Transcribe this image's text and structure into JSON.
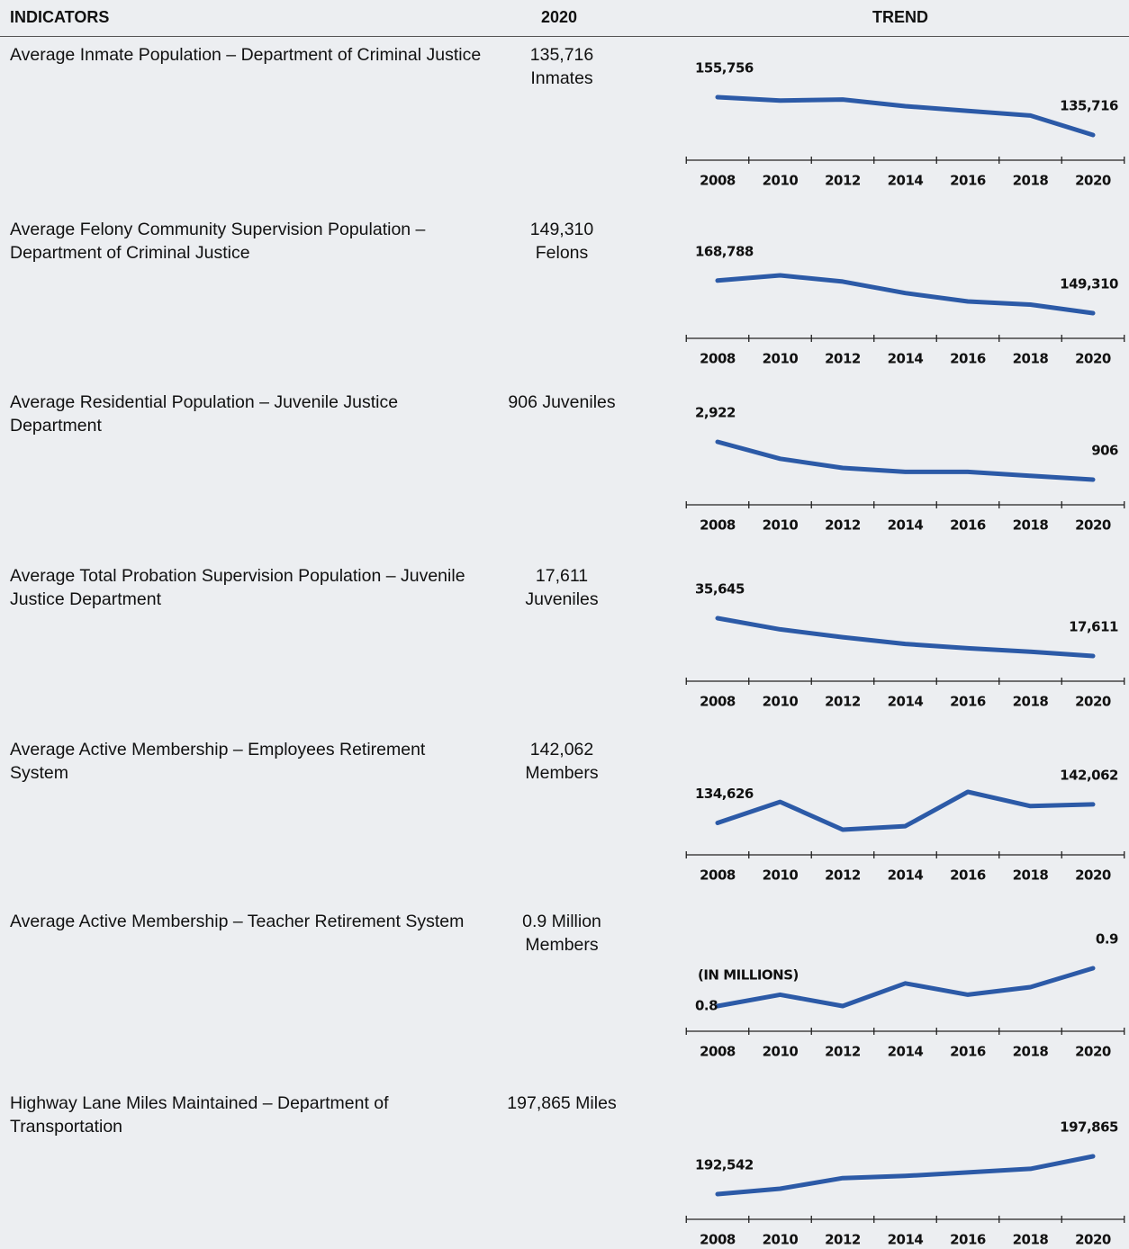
{
  "header": {
    "indicators": "INDICATORS",
    "year": "2020",
    "trend": "TREND"
  },
  "rows": [
    {
      "indicator": "Average Inmate Population – Department of Criminal Justice",
      "value_lines": [
        "135,716",
        "Inmates"
      ],
      "trend": {
        "type": "line",
        "x": [
          2008,
          2010,
          2012,
          2014,
          2016,
          2018,
          2020
        ],
        "values": [
          155756,
          154000,
          154500,
          151000,
          148500,
          146000,
          135716
        ],
        "value_labels": [
          "155,756",
          null,
          null,
          null,
          null,
          null,
          "135,716"
        ]
      }
    },
    {
      "indicator": "Average Felony Community Supervision Population – Department of Criminal Justice",
      "value_lines": [
        "149,310",
        "Felons"
      ],
      "trend": {
        "type": "line",
        "x": [
          2008,
          2010,
          2012,
          2014,
          2016,
          2018,
          2020
        ],
        "values": [
          168788,
          171900,
          168200,
          161300,
          156300,
          154400,
          149310
        ],
        "value_labels": [
          "168,788",
          null,
          null,
          null,
          null,
          null,
          "149,310"
        ]
      }
    },
    {
      "indicator": "Average Residential Population – Juvenile Justice Department",
      "value_lines": [
        "906 Juveniles"
      ],
      "trend": {
        "type": "line",
        "x": [
          2008,
          2010,
          2012,
          2014,
          2016,
          2018,
          2020
        ],
        "values": [
          2922,
          2020,
          1530,
          1320,
          1320,
          1110,
          906
        ],
        "value_labels": [
          "2,922",
          null,
          null,
          null,
          null,
          null,
          "906"
        ]
      }
    },
    {
      "indicator": "Average Total Probation Supervision Population – Juvenile Justice Department",
      "value_lines": [
        "17,611",
        "Juveniles"
      ],
      "trend": {
        "type": "line",
        "x": [
          2008,
          2010,
          2012,
          2014,
          2016,
          2018,
          2020
        ],
        "values": [
          35645,
          30300,
          26600,
          23350,
          21300,
          19650,
          17611
        ],
        "value_labels": [
          "35,645",
          null,
          null,
          null,
          null,
          null,
          "17,611"
        ]
      }
    },
    {
      "indicator": "Average Active Membership – Employees Retirement System",
      "value_lines": [
        "142,062",
        "Members"
      ],
      "trend": {
        "type": "line",
        "x": [
          2008,
          2010,
          2012,
          2014,
          2016,
          2018,
          2020
        ],
        "values": [
          134626,
          143100,
          131900,
          133300,
          147100,
          141400,
          142062
        ],
        "value_labels": [
          "134,626",
          null,
          null,
          null,
          null,
          null,
          "142,062"
        ]
      }
    },
    {
      "indicator": "Average Active Membership – Teacher Retirement System",
      "value_lines": [
        "0.9 Million",
        "Members"
      ],
      "trend": {
        "type": "line",
        "note": "(IN MILLIONS)",
        "x": [
          2008,
          2010,
          2012,
          2014,
          2016,
          2018,
          2020
        ],
        "values": [
          0.8,
          0.83,
          0.8,
          0.86,
          0.83,
          0.85,
          0.9
        ],
        "value_labels": [
          "0.8",
          null,
          null,
          null,
          null,
          null,
          "0.9"
        ]
      }
    },
    {
      "indicator": "Highway Lane Miles Maintained – Department of Transportation",
      "value_lines": [
        "197,865 Miles"
      ],
      "trend": {
        "type": "line",
        "x": [
          2008,
          2010,
          2012,
          2014,
          2016,
          2018,
          2020
        ],
        "values": [
          192542,
          193300,
          194800,
          195100,
          195600,
          196100,
          197865
        ],
        "value_labels": [
          "192,542",
          null,
          null,
          null,
          null,
          null,
          "197,865"
        ]
      }
    }
  ]
}
